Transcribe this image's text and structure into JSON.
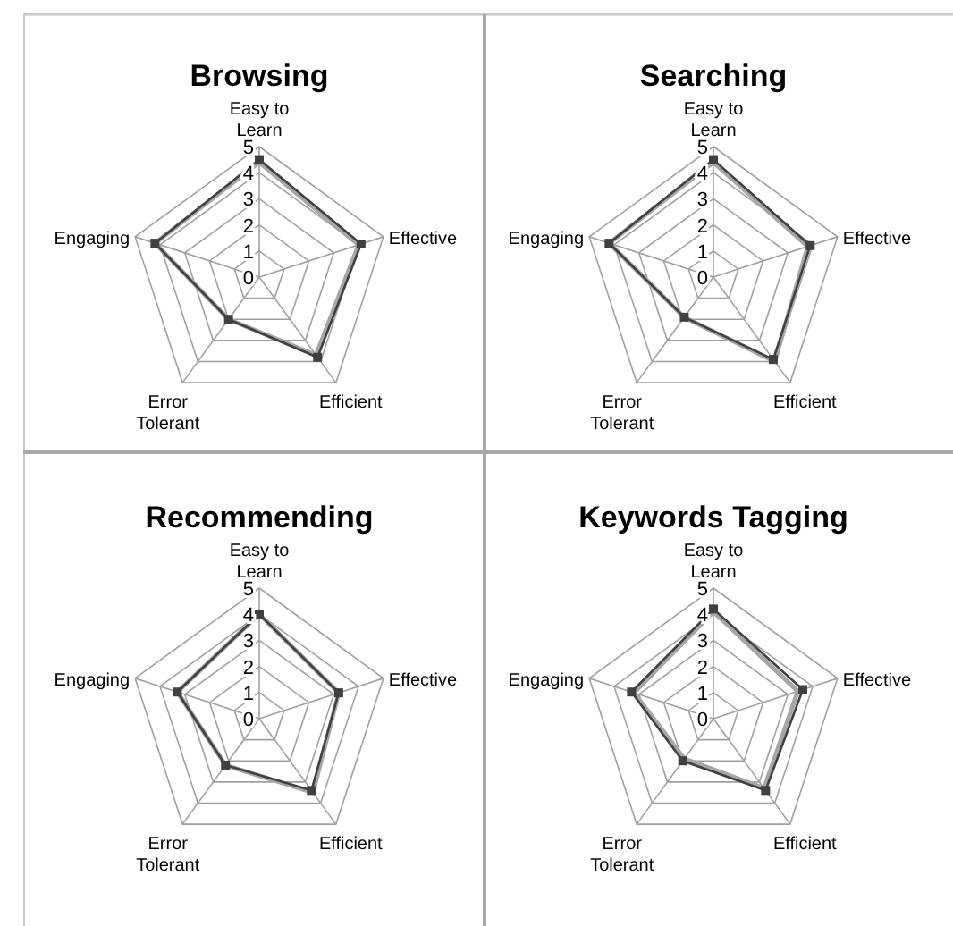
{
  "chart_data": [
    {
      "type": "radar",
      "title": "Browsing",
      "categories": [
        "Easy to Learn",
        "Effective",
        "Efficient",
        "Error Tolerant",
        "Engaging"
      ],
      "ylim": [
        0,
        5
      ],
      "yticks": [
        0,
        1,
        2,
        3,
        4,
        5
      ],
      "grid": true,
      "series": [
        {
          "color": "#a6a6a6",
          "marker": "none",
          "values": [
            4.4,
            4.0,
            3.7,
            2.0,
            4.2
          ]
        },
        {
          "color": "#404040",
          "marker": "square",
          "values": [
            4.5,
            4.1,
            3.8,
            2.0,
            4.2
          ]
        }
      ]
    },
    {
      "type": "radar",
      "title": "Searching",
      "categories": [
        "Easy to Learn",
        "Effective",
        "Efficient",
        "Error Tolerant",
        "Engaging"
      ],
      "ylim": [
        0,
        5
      ],
      "yticks": [
        0,
        1,
        2,
        3,
        4,
        5
      ],
      "grid": true,
      "series": [
        {
          "color": "#a6a6a6",
          "marker": "none",
          "values": [
            4.4,
            3.8,
            4.0,
            1.9,
            4.2
          ]
        },
        {
          "color": "#404040",
          "marker": "square",
          "values": [
            4.5,
            3.9,
            3.9,
            1.9,
            4.2
          ]
        }
      ]
    },
    {
      "type": "radar",
      "title": "Recommending",
      "categories": [
        "Easy to Learn",
        "Effective",
        "Efficient",
        "Error Tolerant",
        "Engaging"
      ],
      "ylim": [
        0,
        5
      ],
      "yticks": [
        0,
        1,
        2,
        3,
        4,
        5
      ],
      "grid": true,
      "series": [
        {
          "color": "#a6a6a6",
          "marker": "none",
          "values": [
            4.0,
            3.2,
            3.5,
            2.2,
            3.3
          ]
        },
        {
          "color": "#404040",
          "marker": "square",
          "values": [
            4.0,
            3.2,
            3.4,
            2.2,
            3.3
          ]
        }
      ]
    },
    {
      "type": "radar",
      "title": "Keywords Tagging",
      "categories": [
        "Easy to Learn",
        "Effective",
        "Efficient",
        "Error Tolerant",
        "Engaging"
      ],
      "ylim": [
        0,
        5
      ],
      "yticks": [
        0,
        1,
        2,
        3,
        4,
        5
      ],
      "grid": true,
      "series": [
        {
          "color": "#a6a6a6",
          "marker": "none",
          "values": [
            4.1,
            3.4,
            3.3,
            1.9,
            3.2
          ]
        },
        {
          "color": "#404040",
          "marker": "square",
          "values": [
            4.2,
            3.6,
            3.4,
            2.0,
            3.3
          ]
        }
      ]
    }
  ]
}
